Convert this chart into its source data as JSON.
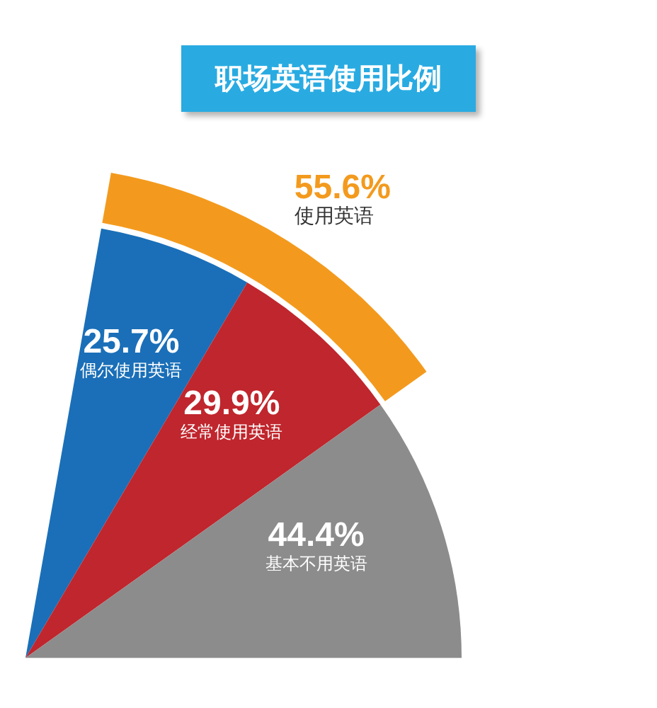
{
  "chart_data": {
    "type": "pie",
    "title": "职场英语使用比例",
    "categories": [
      "偶尔使用英语",
      "经常使用英语",
      "基本不用英语"
    ],
    "values": [
      25.7,
      29.9,
      44.4
    ],
    "colors": [
      "#1a6fb8",
      "#c0262d",
      "#8c8c8c"
    ],
    "value_labels": [
      "25.7%",
      "29.9%",
      "44.4%"
    ],
    "annotations": [
      "55.6%",
      "使用英语"
    ]
  }
}
